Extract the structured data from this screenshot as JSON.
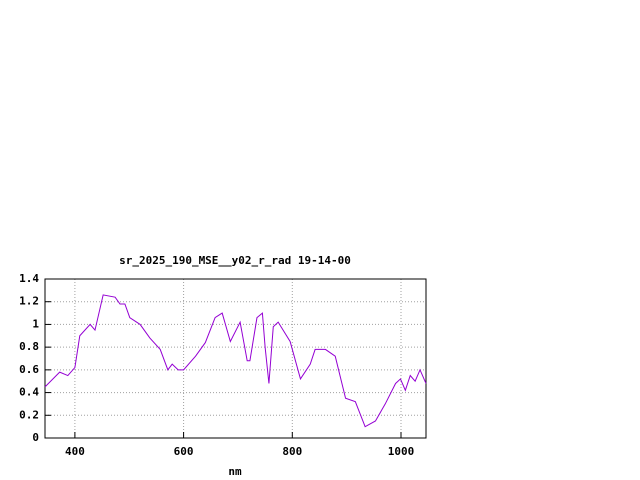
{
  "chart_data": {
    "type": "line",
    "title": "sr_2025_190_MSE__y02_r_rad 19-14-00",
    "x_label": "nm",
    "x": [
      345,
      372,
      387,
      400,
      409,
      428,
      437,
      452,
      474,
      483,
      492,
      501,
      520,
      538,
      557,
      571,
      579,
      590,
      600,
      622,
      640,
      658,
      671,
      686,
      704,
      717,
      722,
      735,
      745,
      750,
      757,
      765,
      774,
      796,
      815,
      833,
      842,
      861,
      879,
      898,
      916,
      934,
      953,
      971,
      990,
      999,
      1008,
      1017,
      1026,
      1035,
      1046
    ],
    "series": [
      {
        "name": "sr_2025_190_MSE__y02_r_rad",
        "color": "#9400d3",
        "values": [
          0.45,
          0.58,
          0.55,
          0.62,
          0.9,
          1.0,
          0.95,
          1.26,
          1.24,
          1.18,
          1.18,
          1.06,
          1.0,
          0.88,
          0.78,
          0.6,
          0.65,
          0.6,
          0.6,
          0.72,
          0.84,
          1.06,
          1.1,
          0.85,
          1.02,
          0.68,
          0.68,
          1.06,
          1.1,
          0.8,
          0.48,
          0.98,
          1.02,
          0.85,
          0.52,
          0.65,
          0.78,
          0.78,
          0.72,
          0.35,
          0.32,
          0.1,
          0.15,
          0.3,
          0.48,
          0.52,
          0.42,
          0.55,
          0.5,
          0.6,
          0.48
        ]
      }
    ],
    "xlim": [
      345,
      1046
    ],
    "xticks": [
      400,
      600,
      800,
      1000
    ],
    "ylim": [
      0,
      1.4
    ],
    "yticks": [
      0,
      0.2,
      0.4,
      0.6,
      0.8,
      1,
      1.2,
      1.4
    ],
    "grid": true
  }
}
